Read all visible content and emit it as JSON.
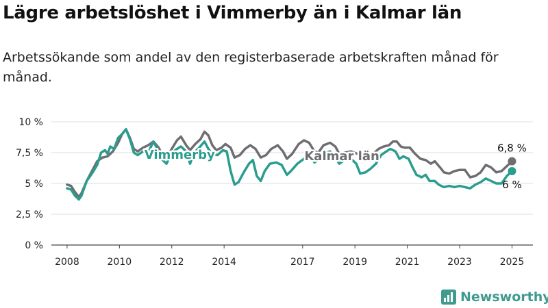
{
  "title": "Lägre arbetslöshet i Vimmerby än i Kalmar län",
  "subtitle": "Arbetssökande som andel av den registerbaserade arbetskraften månad för månad.",
  "brand": {
    "name": "Newsworthy",
    "icon": "bar-chart-logo-icon",
    "color": "#3f9b8f"
  },
  "chart_data": {
    "type": "line",
    "title": "Lägre arbetslöshet i Vimmerby än i Kalmar län",
    "subtitle": "Arbetssökande som andel av den registerbaserade arbetskraften månad för månad.",
    "xlabel": "",
    "ylabel": "",
    "ylim": [
      0,
      10
    ],
    "xlim": [
      2007.4,
      2025.8
    ],
    "y_ticks": [
      0,
      2.5,
      5,
      7.5,
      10
    ],
    "y_tick_labels": [
      "0 %",
      "2,5 %",
      "5 %",
      "7,5 %",
      "10 %"
    ],
    "x_ticks": [
      2008,
      2010,
      2012,
      2014,
      2017,
      2019,
      2021,
      2023,
      2025
    ],
    "x_tick_labels": [
      "2008",
      "2010",
      "2012",
      "2014",
      "2017",
      "2019",
      "2021",
      "2023",
      "2025"
    ],
    "grid": "horizontal",
    "series": [
      {
        "name": "Kalmar län",
        "color": "#6e6e72",
        "end_label": "6,8 %",
        "points": [
          [
            2008.0,
            4.9
          ],
          [
            2008.15,
            4.8
          ],
          [
            2008.3,
            4.3
          ],
          [
            2008.45,
            3.9
          ],
          [
            2008.55,
            4.2
          ],
          [
            2008.75,
            5.2
          ],
          [
            2008.95,
            6.0
          ],
          [
            2009.15,
            6.8
          ],
          [
            2009.35,
            7.1
          ],
          [
            2009.55,
            7.2
          ],
          [
            2009.75,
            7.6
          ],
          [
            2009.95,
            8.3
          ],
          [
            2010.1,
            9.0
          ],
          [
            2010.25,
            9.4
          ],
          [
            2010.4,
            8.7
          ],
          [
            2010.55,
            7.8
          ],
          [
            2010.7,
            7.6
          ],
          [
            2010.9,
            7.9
          ],
          [
            2011.1,
            8.1
          ],
          [
            2011.3,
            8.4
          ],
          [
            2011.5,
            7.9
          ],
          [
            2011.65,
            7.3
          ],
          [
            2011.8,
            7.0
          ],
          [
            2012.0,
            7.8
          ],
          [
            2012.2,
            8.5
          ],
          [
            2012.35,
            8.8
          ],
          [
            2012.55,
            8.1
          ],
          [
            2012.7,
            7.7
          ],
          [
            2012.9,
            8.2
          ],
          [
            2013.1,
            8.6
          ],
          [
            2013.25,
            9.2
          ],
          [
            2013.4,
            8.9
          ],
          [
            2013.55,
            8.1
          ],
          [
            2013.7,
            7.7
          ],
          [
            2013.9,
            7.9
          ],
          [
            2014.05,
            8.2
          ],
          [
            2014.25,
            7.9
          ],
          [
            2014.4,
            7.1
          ],
          [
            2014.6,
            7.3
          ],
          [
            2014.8,
            7.8
          ],
          [
            2015.0,
            8.1
          ],
          [
            2015.2,
            7.8
          ],
          [
            2015.4,
            7.1
          ],
          [
            2015.6,
            7.3
          ],
          [
            2015.8,
            7.8
          ],
          [
            2016.05,
            8.1
          ],
          [
            2016.25,
            7.6
          ],
          [
            2016.4,
            7.0
          ],
          [
            2016.6,
            7.4
          ],
          [
            2016.85,
            8.2
          ],
          [
            2017.05,
            8.5
          ],
          [
            2017.25,
            8.3
          ],
          [
            2017.45,
            7.6
          ],
          [
            2017.6,
            7.5
          ],
          [
            2017.8,
            8.1
          ],
          [
            2018.05,
            8.3
          ],
          [
            2018.25,
            8.0
          ],
          [
            2018.4,
            7.4
          ],
          [
            2018.6,
            7.5
          ],
          [
            2018.85,
            7.6
          ],
          [
            2019.1,
            7.4
          ],
          [
            2019.3,
            7.2
          ],
          [
            2019.5,
            7.3
          ],
          [
            2019.7,
            7.4
          ],
          [
            2019.9,
            7.8
          ],
          [
            2020.1,
            8.0
          ],
          [
            2020.3,
            8.1
          ],
          [
            2020.45,
            8.4
          ],
          [
            2020.6,
            8.4
          ],
          [
            2020.75,
            8.0
          ],
          [
            2020.9,
            7.9
          ],
          [
            2021.1,
            7.9
          ],
          [
            2021.3,
            7.4
          ],
          [
            2021.5,
            7.0
          ],
          [
            2021.7,
            6.9
          ],
          [
            2021.9,
            6.6
          ],
          [
            2022.05,
            6.8
          ],
          [
            2022.25,
            6.3
          ],
          [
            2022.4,
            5.9
          ],
          [
            2022.6,
            5.8
          ],
          [
            2022.8,
            6.0
          ],
          [
            2023.0,
            6.1
          ],
          [
            2023.2,
            6.1
          ],
          [
            2023.4,
            5.5
          ],
          [
            2023.6,
            5.6
          ],
          [
            2023.8,
            5.9
          ],
          [
            2024.0,
            6.5
          ],
          [
            2024.2,
            6.3
          ],
          [
            2024.4,
            5.9
          ],
          [
            2024.6,
            6.0
          ],
          [
            2024.8,
            6.4
          ],
          [
            2025.0,
            6.8
          ]
        ]
      },
      {
        "name": "Vimmerby",
        "color": "#2a9d8f",
        "end_label": "6 %",
        "points": [
          [
            2008.0,
            4.6
          ],
          [
            2008.15,
            4.5
          ],
          [
            2008.3,
            4.0
          ],
          [
            2008.45,
            3.7
          ],
          [
            2008.55,
            4.0
          ],
          [
            2008.75,
            5.2
          ],
          [
            2008.95,
            5.8
          ],
          [
            2009.15,
            6.5
          ],
          [
            2009.3,
            7.5
          ],
          [
            2009.45,
            7.7
          ],
          [
            2009.55,
            7.4
          ],
          [
            2009.65,
            8.0
          ],
          [
            2009.8,
            7.8
          ],
          [
            2009.95,
            8.7
          ],
          [
            2010.1,
            9.0
          ],
          [
            2010.25,
            9.4
          ],
          [
            2010.4,
            8.6
          ],
          [
            2010.55,
            7.5
          ],
          [
            2010.7,
            7.3
          ],
          [
            2010.9,
            7.6
          ],
          [
            2011.1,
            7.5
          ],
          [
            2011.3,
            8.4
          ],
          [
            2011.5,
            7.6
          ],
          [
            2011.65,
            6.9
          ],
          [
            2011.8,
            6.6
          ],
          [
            2012.0,
            7.5
          ],
          [
            2012.2,
            7.8
          ],
          [
            2012.35,
            8.0
          ],
          [
            2012.55,
            7.6
          ],
          [
            2012.7,
            6.6
          ],
          [
            2012.85,
            7.5
          ],
          [
            2013.05,
            7.9
          ],
          [
            2013.25,
            8.4
          ],
          [
            2013.4,
            7.8
          ],
          [
            2013.55,
            7.4
          ],
          [
            2013.75,
            7.3
          ],
          [
            2013.95,
            7.7
          ],
          [
            2014.1,
            7.6
          ],
          [
            2014.25,
            6.0
          ],
          [
            2014.4,
            4.9
          ],
          [
            2014.55,
            5.1
          ],
          [
            2014.75,
            5.9
          ],
          [
            2014.95,
            6.6
          ],
          [
            2015.1,
            6.9
          ],
          [
            2015.25,
            5.6
          ],
          [
            2015.4,
            5.2
          ],
          [
            2015.55,
            6.0
          ],
          [
            2015.75,
            6.6
          ],
          [
            2016.0,
            6.7
          ],
          [
            2016.2,
            6.5
          ],
          [
            2016.4,
            5.7
          ],
          [
            2016.55,
            6.0
          ],
          [
            2016.8,
            6.6
          ],
          [
            2017.05,
            7.0
          ],
          [
            2017.25,
            7.3
          ],
          [
            2017.45,
            6.7
          ],
          [
            2017.6,
            6.9
          ],
          [
            2017.8,
            7.4
          ],
          [
            2018.05,
            7.6
          ],
          [
            2018.25,
            7.1
          ],
          [
            2018.4,
            6.6
          ],
          [
            2018.6,
            6.9
          ],
          [
            2018.85,
            7.0
          ],
          [
            2019.05,
            6.6
          ],
          [
            2019.2,
            5.8
          ],
          [
            2019.4,
            5.9
          ],
          [
            2019.6,
            6.2
          ],
          [
            2019.8,
            6.6
          ],
          [
            2020.0,
            7.3
          ],
          [
            2020.2,
            7.6
          ],
          [
            2020.35,
            7.8
          ],
          [
            2020.55,
            7.6
          ],
          [
            2020.7,
            7.0
          ],
          [
            2020.85,
            7.2
          ],
          [
            2021.05,
            7.0
          ],
          [
            2021.2,
            6.3
          ],
          [
            2021.35,
            5.7
          ],
          [
            2021.55,
            5.5
          ],
          [
            2021.7,
            5.7
          ],
          [
            2021.85,
            5.2
          ],
          [
            2022.05,
            5.2
          ],
          [
            2022.2,
            4.9
          ],
          [
            2022.4,
            4.7
          ],
          [
            2022.6,
            4.8
          ],
          [
            2022.8,
            4.7
          ],
          [
            2023.0,
            4.8
          ],
          [
            2023.2,
            4.7
          ],
          [
            2023.4,
            4.6
          ],
          [
            2023.6,
            4.9
          ],
          [
            2023.8,
            5.1
          ],
          [
            2024.0,
            5.4
          ],
          [
            2024.2,
            5.2
          ],
          [
            2024.4,
            5.0
          ],
          [
            2024.6,
            5.0
          ],
          [
            2024.8,
            5.6
          ],
          [
            2025.0,
            6.0
          ]
        ]
      }
    ],
    "annotations": [
      {
        "text": "Vimmerby",
        "series": "Vimmerby",
        "x": 2012.3,
        "y": 7.0
      },
      {
        "text": "Kalmar län",
        "series": "Kalmar län",
        "x": 2018.5,
        "y": 6.9
      }
    ]
  }
}
